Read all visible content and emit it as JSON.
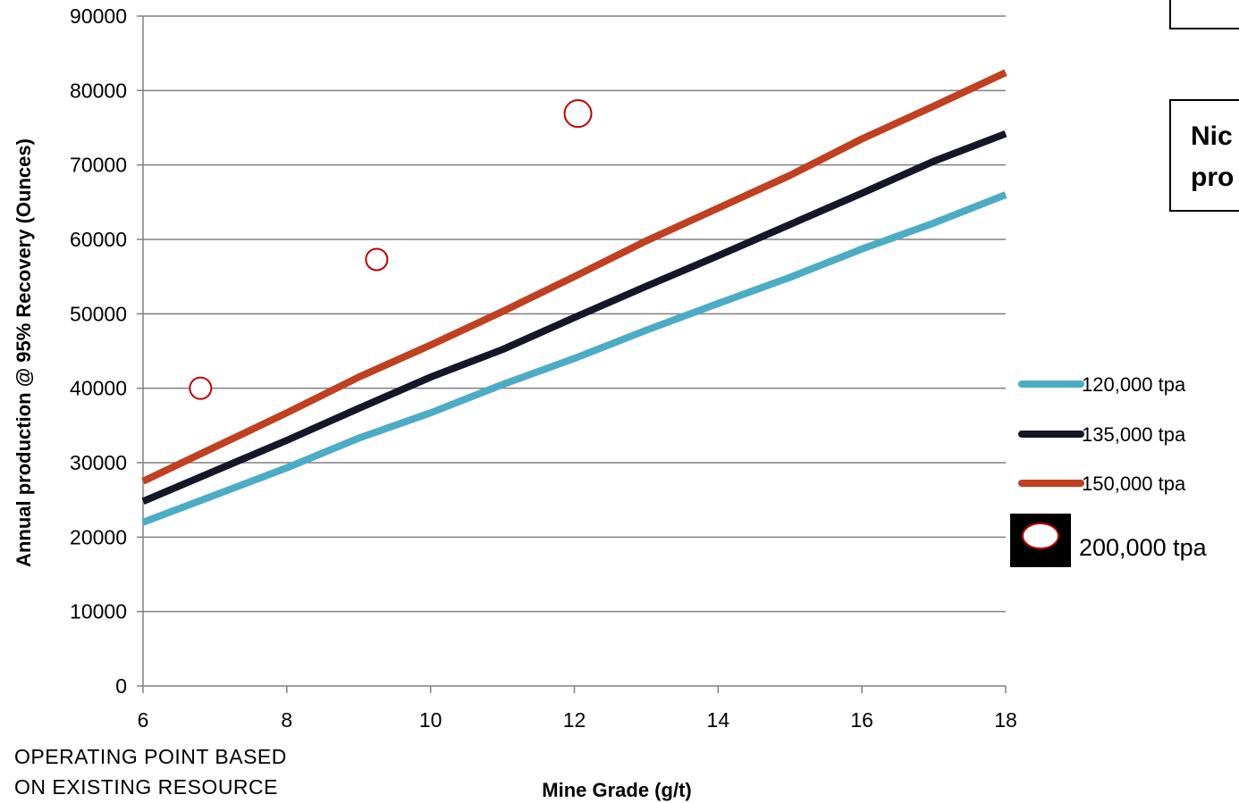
{
  "chart_data": {
    "type": "line",
    "title": "",
    "xlabel": "Mine Grade (g/t)",
    "ylabel": "Annual production @ 95% Recovery (Ounces)",
    "xlim": [
      6,
      18
    ],
    "ylim": [
      0,
      90000
    ],
    "x_ticks": [
      "6",
      "8",
      "10",
      "12",
      "14",
      "16",
      "18"
    ],
    "y_ticks": [
      "0",
      "10000",
      "20000",
      "30000",
      "40000",
      "50000",
      "60000",
      "70000",
      "80000",
      "90000"
    ],
    "grid": "horizontal",
    "legend_position": "right",
    "series": [
      {
        "name": "120,000 tpa",
        "color": "#4bacc6",
        "points": [
          [
            6,
            22000
          ],
          [
            8,
            29300
          ],
          [
            9,
            33300
          ],
          [
            10,
            36700
          ],
          [
            11,
            40500
          ],
          [
            12,
            44000
          ],
          [
            13,
            47800
          ],
          [
            14,
            51400
          ],
          [
            15,
            54900
          ],
          [
            16,
            58700
          ],
          [
            17,
            62200
          ],
          [
            18,
            66000
          ]
        ]
      },
      {
        "name": "135,000 tpa",
        "color": "#161629",
        "points": [
          [
            6,
            24800
          ],
          [
            8,
            33000
          ],
          [
            9,
            37300
          ],
          [
            10,
            41500
          ],
          [
            11,
            45200
          ],
          [
            12,
            49500
          ],
          [
            13,
            53700
          ],
          [
            14,
            57800
          ],
          [
            15,
            62000
          ],
          [
            16,
            66200
          ],
          [
            17,
            70500
          ],
          [
            18,
            74200
          ]
        ]
      },
      {
        "name": "150,000 tpa",
        "color": "#c0401f",
        "points": [
          [
            6,
            27500
          ],
          [
            8,
            36700
          ],
          [
            9,
            41500
          ],
          [
            10,
            45800
          ],
          [
            11,
            50300
          ],
          [
            12,
            55000
          ],
          [
            13,
            59800
          ],
          [
            14,
            64200
          ],
          [
            15,
            68600
          ],
          [
            16,
            73500
          ],
          [
            17,
            77900
          ],
          [
            18,
            82400
          ]
        ]
      },
      {
        "name": "200,000 tpa",
        "color": "#c00000",
        "marker": "hollow-circle",
        "points": [
          [
            6.8,
            40000
          ],
          [
            9.25,
            57300
          ],
          [
            12.05,
            76900
          ]
        ]
      }
    ]
  },
  "notes": {
    "operating_point_line1": "OPERATING  POINT BASED",
    "operating_point_line2": "ON EXISTING  RESOURCE"
  },
  "side_boxes": {
    "box2_line1": "Nic",
    "box2_line2": "pro"
  }
}
